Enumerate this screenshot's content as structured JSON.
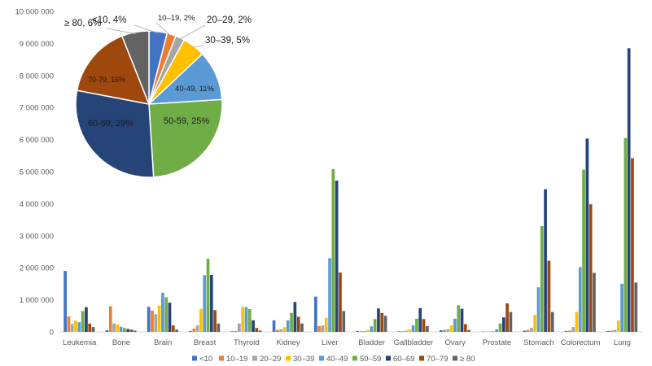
{
  "chart_data": [
    {
      "type": "bar",
      "title": "",
      "xlabel": "",
      "ylabel": "",
      "ylim": [
        0,
        10000000
      ],
      "yticks": [
        0,
        1000000,
        2000000,
        3000000,
        4000000,
        5000000,
        6000000,
        7000000,
        8000000,
        9000000,
        10000000
      ],
      "ytick_labels": [
        "0",
        "1 000 000",
        "2 000 000",
        "3 000 000",
        "4 000 000",
        "5 000 000",
        "6 000 000",
        "7 000 000",
        "8 000 000",
        "9 000 000",
        "10 000 000"
      ],
      "grid": false,
      "legend_position": "bottom",
      "categories": [
        "Leukemia",
        "Bone",
        "Brain",
        "Breast",
        "Thyroid",
        "Kidney",
        "Liver",
        "Bladder",
        "Gallbladder",
        "Ovary",
        "Prostate",
        "Stomach",
        "Colorectum",
        "Lung"
      ],
      "series": [
        {
          "name": "<10",
          "color": "#4472C4",
          "values": [
            1900000,
            50000,
            780000,
            30000,
            20000,
            360000,
            1100000,
            30000,
            20000,
            50000,
            10000,
            40000,
            30000,
            30000
          ]
        },
        {
          "name": "10–19",
          "color": "#ED7D31",
          "values": [
            480000,
            800000,
            660000,
            100000,
            30000,
            60000,
            180000,
            20000,
            20000,
            60000,
            10000,
            60000,
            40000,
            40000
          ]
        },
        {
          "name": "20–29",
          "color": "#A5A5A5",
          "values": [
            250000,
            260000,
            550000,
            200000,
            260000,
            80000,
            200000,
            30000,
            40000,
            80000,
            10000,
            130000,
            150000,
            60000
          ]
        },
        {
          "name": "30–39",
          "color": "#FFC000",
          "values": [
            350000,
            230000,
            820000,
            720000,
            780000,
            150000,
            430000,
            60000,
            70000,
            200000,
            30000,
            530000,
            620000,
            360000
          ]
        },
        {
          "name": "40–49",
          "color": "#5B9BD5",
          "values": [
            300000,
            160000,
            1220000,
            1770000,
            770000,
            360000,
            2300000,
            170000,
            200000,
            410000,
            80000,
            1390000,
            2020000,
            1500000
          ]
        },
        {
          "name": "50–59",
          "color": "#70AD47",
          "values": [
            650000,
            120000,
            1080000,
            2280000,
            710000,
            590000,
            5080000,
            400000,
            410000,
            830000,
            260000,
            3300000,
            5060000,
            6050000
          ]
        },
        {
          "name": "60–69",
          "color": "#264478",
          "values": [
            770000,
            90000,
            910000,
            1780000,
            360000,
            930000,
            4720000,
            730000,
            740000,
            720000,
            450000,
            4450000,
            6030000,
            8850000
          ]
        },
        {
          "name": "70–79",
          "color": "#9E480E",
          "values": [
            260000,
            70000,
            200000,
            680000,
            120000,
            470000,
            1850000,
            590000,
            400000,
            240000,
            890000,
            2220000,
            3980000,
            5420000
          ]
        },
        {
          "name": "≥ 80",
          "color": "#636363",
          "values": [
            150000,
            40000,
            70000,
            260000,
            40000,
            260000,
            650000,
            500000,
            180000,
            60000,
            620000,
            620000,
            1840000,
            1540000
          ]
        }
      ]
    },
    {
      "type": "pie",
      "title": "",
      "slices": [
        {
          "label": "<10, 4%",
          "value": 4,
          "color": "#4472C4"
        },
        {
          "label": "10–19, 2%",
          "value": 2,
          "color": "#ED7D31"
        },
        {
          "label": "20–29, 2%",
          "value": 2,
          "color": "#A5A5A5"
        },
        {
          "label": "30–39, 5%",
          "value": 5,
          "color": "#FFC000"
        },
        {
          "label": "40-49, 11%",
          "value": 11,
          "color": "#5B9BD5"
        },
        {
          "label": "50-59, 25%",
          "value": 25,
          "color": "#70AD47"
        },
        {
          "label": "60-69, 29%",
          "value": 29,
          "color": "#264478"
        },
        {
          "label": "70-79, 16%",
          "value": 16,
          "color": "#9E480E"
        },
        {
          "label": "≥ 80, 6%",
          "value": 6,
          "color": "#636363"
        }
      ]
    }
  ]
}
